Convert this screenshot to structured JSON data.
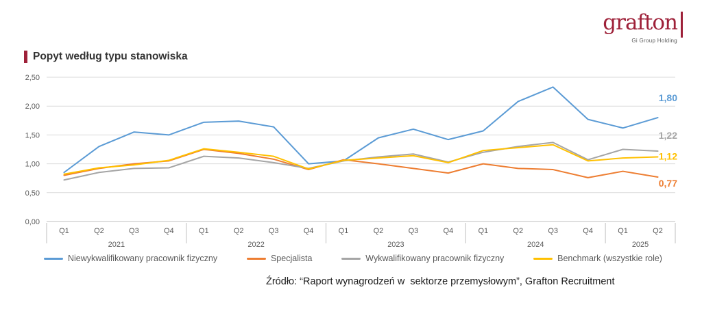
{
  "logo": {
    "name": "grafton",
    "subtitle": "Gi Group Holding"
  },
  "title": "Popyt według typu stanowiska",
  "source": "Źródło: “Raport wynagrodzeń w  sektorze przemysłowym”, Grafton Recruitment",
  "chart_data": {
    "type": "line",
    "title": "Popyt według typu stanowiska",
    "ylim": [
      0,
      2.5
    ],
    "grid": true,
    "legend_position": "bottom",
    "y_ticks": [
      "0,00",
      "0,50",
      "1,00",
      "1,50",
      "2,00",
      "2,50"
    ],
    "quarters": [
      "Q1",
      "Q2",
      "Q3",
      "Q4",
      "Q1",
      "Q2",
      "Q3",
      "Q4",
      "Q1",
      "Q2",
      "Q3",
      "Q4",
      "Q1",
      "Q2",
      "Q3",
      "Q4",
      "Q1",
      "Q2"
    ],
    "years": [
      "2021",
      "2022",
      "2023",
      "2024",
      "2025"
    ],
    "year_spans": [
      4,
      4,
      4,
      4,
      2
    ],
    "series": [
      {
        "name": "Niewykwalifikowany pracownik fizyczny",
        "color": "#5B9BD5",
        "end_label": "1,80",
        "values": [
          0.85,
          1.3,
          1.55,
          1.5,
          1.72,
          1.74,
          1.64,
          1.0,
          1.05,
          1.45,
          1.6,
          1.42,
          1.57,
          2.08,
          2.33,
          1.77,
          1.62,
          1.8
        ]
      },
      {
        "name": "Specjalista",
        "color": "#ED7D31",
        "end_label": "0,77",
        "values": [
          0.8,
          0.92,
          1.0,
          1.05,
          1.25,
          1.18,
          1.08,
          0.9,
          1.07,
          1.0,
          0.92,
          0.84,
          1.0,
          0.92,
          0.9,
          0.76,
          0.87,
          0.77
        ]
      },
      {
        "name": "Wykwalifikowany pracownik fizyczny",
        "color": "#A5A5A5",
        "end_label": "1,22",
        "values": [
          0.72,
          0.85,
          0.92,
          0.93,
          1.13,
          1.1,
          1.02,
          0.92,
          1.05,
          1.12,
          1.17,
          1.03,
          1.2,
          1.3,
          1.37,
          1.07,
          1.25,
          1.22
        ]
      },
      {
        "name": "Benchmark (wszystkie role)",
        "color": "#FFC000",
        "end_label": "1,12",
        "values": [
          0.82,
          0.93,
          0.98,
          1.06,
          1.26,
          1.2,
          1.13,
          0.91,
          1.06,
          1.1,
          1.14,
          1.02,
          1.23,
          1.28,
          1.33,
          1.05,
          1.1,
          1.12
        ]
      }
    ]
  }
}
